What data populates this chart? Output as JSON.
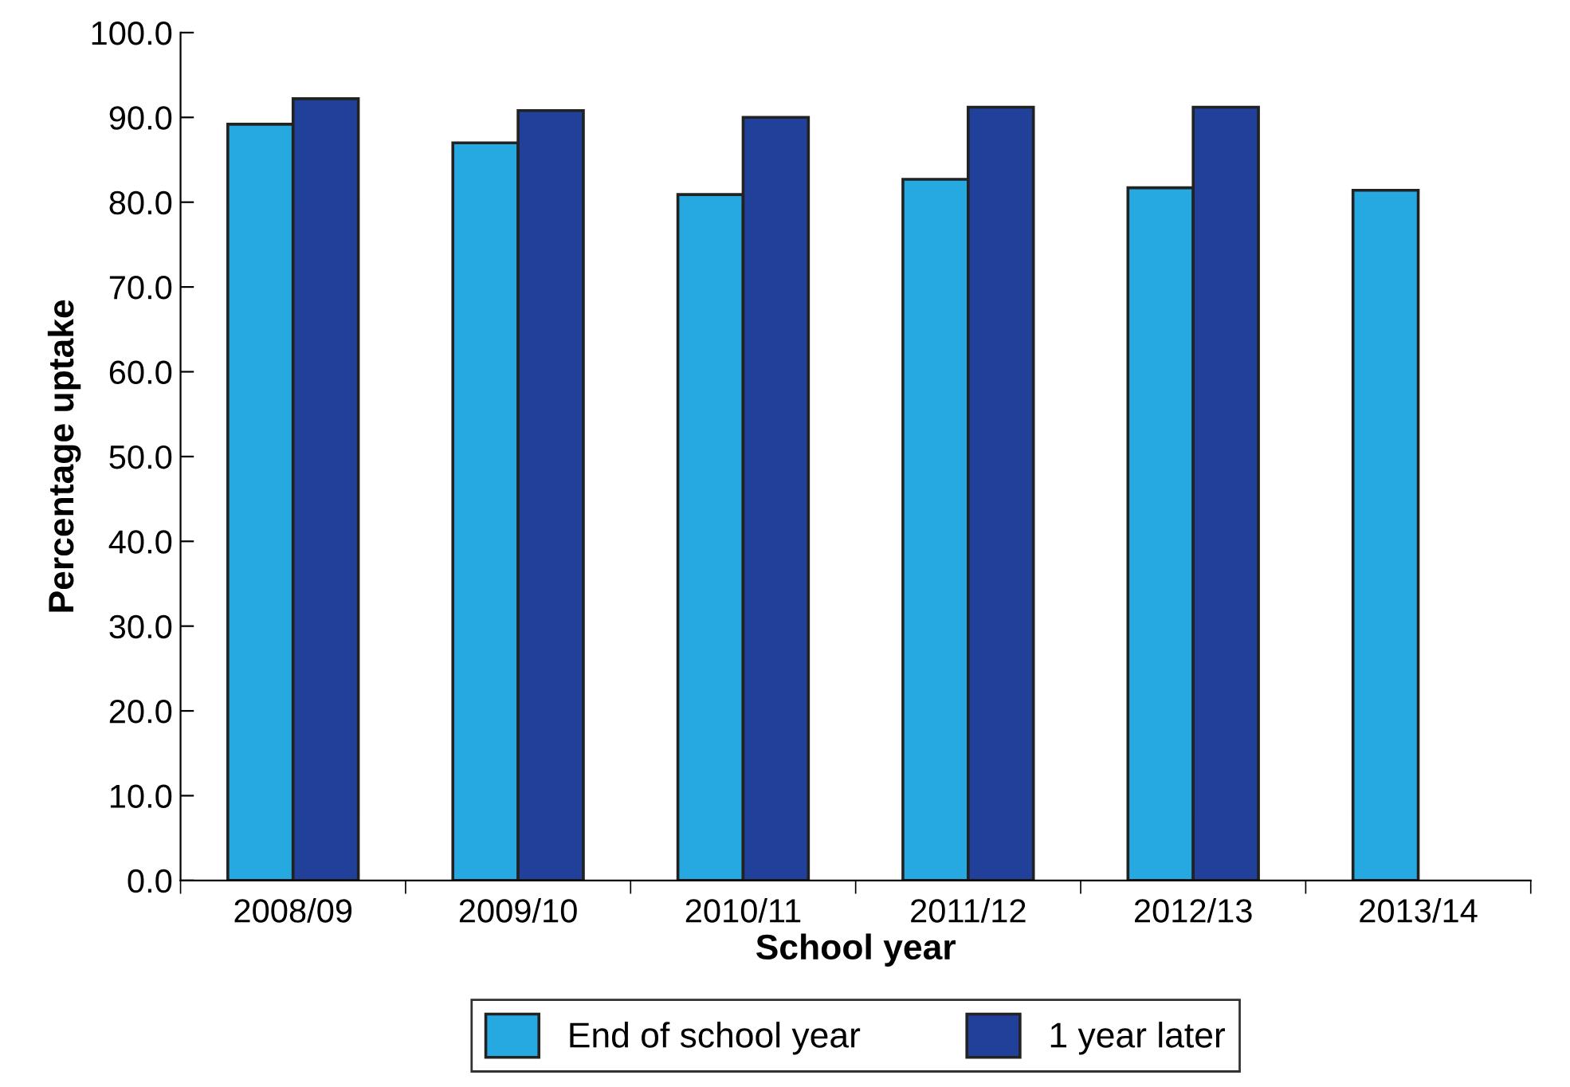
{
  "chart_data": {
    "type": "bar",
    "xlabel": "School year",
    "ylabel": "Percentage uptake",
    "categories": [
      "2008/09",
      "2009/10",
      "2010/11",
      "2011/12",
      "2012/13",
      "2013/14"
    ],
    "series": [
      {
        "name": "End of school year",
        "color": "#25a9e0",
        "values": [
          89.2,
          87.0,
          80.9,
          82.7,
          81.7,
          81.4
        ]
      },
      {
        "name": "1 year later",
        "color": "#21409a",
        "values": [
          92.2,
          90.8,
          90.0,
          91.2,
          91.2,
          null
        ]
      }
    ],
    "ylim": [
      0,
      100
    ],
    "yticks": [
      {
        "value": 0,
        "label": "0.0"
      },
      {
        "value": 10,
        "label": "10.0"
      },
      {
        "value": 20,
        "label": "20.0"
      },
      {
        "value": 30,
        "label": "30.0"
      },
      {
        "value": 40,
        "label": "40.0"
      },
      {
        "value": 50,
        "label": "50.0"
      },
      {
        "value": 60,
        "label": "60.0"
      },
      {
        "value": 70,
        "label": "70.0"
      },
      {
        "value": 80,
        "label": "80.0"
      },
      {
        "value": 90,
        "label": "90.0"
      },
      {
        "value": 100,
        "label": "100.0"
      }
    ],
    "grid": false,
    "legend": "bottom"
  }
}
